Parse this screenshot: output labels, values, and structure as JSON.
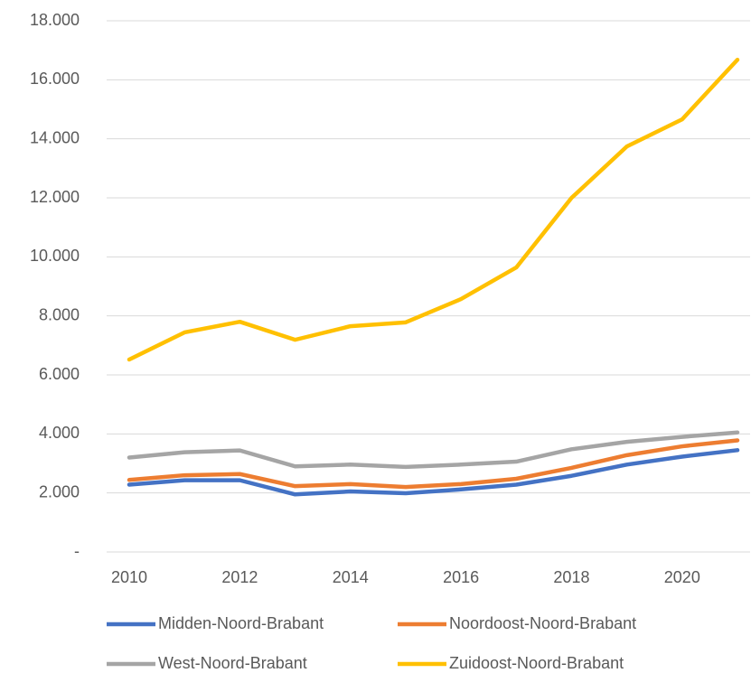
{
  "chart_data": {
    "type": "line",
    "x": [
      2010,
      2011,
      2012,
      2013,
      2014,
      2015,
      2016,
      2017,
      2018,
      2019,
      2020,
      2021
    ],
    "xlim": [
      2010,
      2021
    ],
    "xticks": [
      2010,
      2012,
      2014,
      2016,
      2018,
      2020
    ],
    "ylim": [
      0,
      18000
    ],
    "yticks": [
      {
        "value": 0,
        "label": "-"
      },
      {
        "value": 2000,
        "label": "2.000"
      },
      {
        "value": 4000,
        "label": "4.000"
      },
      {
        "value": 6000,
        "label": "6.000"
      },
      {
        "value": 8000,
        "label": "8.000"
      },
      {
        "value": 10000,
        "label": "10.000"
      },
      {
        "value": 12000,
        "label": "12.000"
      },
      {
        "value": 14000,
        "label": "14.000"
      },
      {
        "value": 16000,
        "label": "16.000"
      },
      {
        "value": 18000,
        "label": "18.000"
      }
    ],
    "grid": true,
    "legend": "bottom",
    "series": [
      {
        "name": "Midden-Noord-Brabant",
        "color": "#4472c4",
        "values": [
          2280,
          2430,
          2430,
          1950,
          2050,
          1990,
          2120,
          2280,
          2580,
          2960,
          3230,
          3450
        ]
      },
      {
        "name": "Noordoost-Noord-Brabant",
        "color": "#ed7d31",
        "values": [
          2440,
          2600,
          2640,
          2230,
          2300,
          2200,
          2300,
          2480,
          2850,
          3280,
          3580,
          3780
        ]
      },
      {
        "name": "West-Noord-Brabant",
        "color": "#a5a5a5",
        "values": [
          3200,
          3380,
          3440,
          2900,
          2960,
          2880,
          2960,
          3060,
          3480,
          3730,
          3900,
          4050
        ]
      },
      {
        "name": "Zuidoost-Noord-Brabant",
        "color": "#ffc000",
        "values": [
          6520,
          7440,
          7800,
          7190,
          7650,
          7780,
          8570,
          9640,
          12000,
          13740,
          14660,
          16680
        ]
      }
    ]
  }
}
